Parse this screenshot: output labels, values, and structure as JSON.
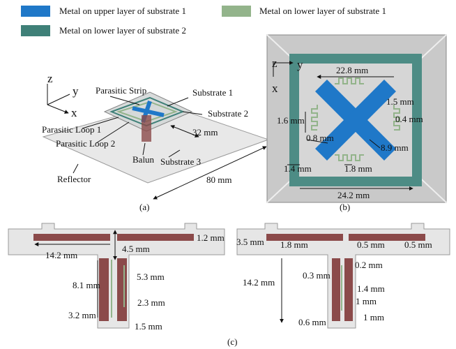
{
  "legend": [
    "Metal on upper layer of substrate 1",
    "Metal on lower layer of substrate 1",
    "Metal on lower layer of substrate 2"
  ],
  "panel_a": {
    "axes": [
      "z",
      "y",
      "x"
    ],
    "labels": [
      "Parasitic Strip",
      "Substrate 1",
      "Substrate 2",
      "Parasitic Loop 1",
      "Parasitic Loop 2",
      "32 mm",
      "Balun",
      "Substrate 3",
      "Reflector",
      "80 mm"
    ],
    "caption": "(a)"
  },
  "panel_b": {
    "axes": [
      "z",
      "y",
      "x"
    ],
    "labels": [
      "22.8 mm",
      "1.5 mm",
      "1.6 mm",
      "0.4 mm",
      "0.8 mm",
      "8.9 mm",
      "1.8 mm",
      "1.4 mm",
      "24.2 mm"
    ],
    "caption": "(b)"
  },
  "panel_c": {
    "left": [
      "1.2 mm",
      "14.2 mm",
      "4.5 mm",
      "5.3 mm",
      "8.1 mm",
      "2.3 mm",
      "3.2 mm",
      "1.5 mm"
    ],
    "right": [
      "3.5 mm",
      "1.8 mm",
      "0.5 mm",
      "0.5 mm",
      "0.2 mm",
      "14.2 mm",
      "0.3 mm",
      "1.4 mm",
      "1 mm",
      "0.6 mm",
      "1 mm"
    ],
    "caption": "(c)"
  }
}
